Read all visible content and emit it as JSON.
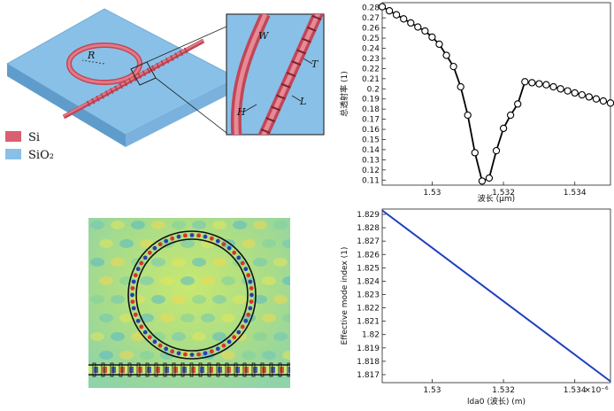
{
  "schematic": {
    "dimension_labels": {
      "radius": "R",
      "width": "W",
      "thickness": "T",
      "height": "H",
      "length": "L"
    },
    "legend": [
      {
        "label": "Si",
        "color": "#d9606e"
      },
      {
        "label": "SiO₂",
        "color": "#89c0e8"
      }
    ]
  },
  "colors": {
    "substrate": "#89c0e8",
    "silicon": "#d9606e",
    "curve1": "#000000",
    "curve2": "#1f3fbf"
  },
  "chart_data": [
    {
      "type": "line",
      "title": "",
      "xlabel": "波长 (μm)",
      "ylabel": "总透射率 (1)",
      "xlim": [
        1.5286,
        1.535
      ],
      "ylim": [
        0.105,
        0.285
      ],
      "xticks": [
        1.53,
        1.532,
        1.534
      ],
      "xtick_labels": [
        "1.53",
        "1.532",
        "1.534"
      ],
      "yticks": [
        0.11,
        0.12,
        0.13,
        0.14,
        0.15,
        0.16,
        0.17,
        0.18,
        0.19,
        0.2,
        0.21,
        0.22,
        0.23,
        0.24,
        0.25,
        0.26,
        0.27,
        0.28
      ],
      "ytick_labels": [
        "0.11",
        "0.12",
        "0.13",
        "0.14",
        "0.15",
        "0.16",
        "0.17",
        "0.18",
        "0.19",
        "0.2",
        "0.21",
        "0.22",
        "0.23",
        "0.24",
        "0.25",
        "0.26",
        "0.27",
        "0.28"
      ],
      "x": [
        1.5286,
        1.5288,
        1.529,
        1.5292,
        1.5294,
        1.5296,
        1.5298,
        1.53,
        1.5302,
        1.5304,
        1.5306,
        1.5308,
        1.531,
        1.5312,
        1.5314,
        1.5316,
        1.5318,
        1.532,
        1.5322,
        1.5324,
        1.5326,
        1.5328,
        1.533,
        1.5332,
        1.5334,
        1.5336,
        1.5338,
        1.534,
        1.5342,
        1.5344,
        1.5346,
        1.5348,
        1.535
      ],
      "y": [
        0.281,
        0.277,
        0.273,
        0.269,
        0.265,
        0.261,
        0.257,
        0.251,
        0.244,
        0.233,
        0.222,
        0.202,
        0.174,
        0.137,
        0.109,
        0.112,
        0.139,
        0.161,
        0.174,
        0.185,
        0.207,
        0.206,
        0.205,
        0.204,
        0.202,
        0.2,
        0.198,
        0.196,
        0.194,
        0.192,
        0.19,
        0.188,
        0.186
      ],
      "markers": "circle",
      "grid": false
    },
    {
      "type": "line",
      "title": "",
      "xlabel": "lda0 (波长) (m)",
      "ylabel": "Effective mode index (1)",
      "xlim": [
        1.5286,
        1.535
      ],
      "ylim": [
        1.8164,
        1.8294
      ],
      "xticks": [
        1.53,
        1.532,
        1.534
      ],
      "xtick_labels": [
        "1.53",
        "1.532",
        "1.534"
      ],
      "x_exponent": "×10⁻⁶",
      "yticks": [
        1.817,
        1.818,
        1.819,
        1.82,
        1.821,
        1.822,
        1.823,
        1.824,
        1.825,
        1.826,
        1.827,
        1.828,
        1.829
      ],
      "ytick_labels": [
        "1.817",
        "1.818",
        "1.819",
        "1.82",
        "1.821",
        "1.822",
        "1.823",
        "1.824",
        "1.825",
        "1.826",
        "1.827",
        "1.828",
        "1.829"
      ],
      "x": [
        1.5286,
        1.535
      ],
      "y": [
        1.8293,
        1.8165
      ],
      "markers": "none",
      "grid": false
    }
  ]
}
